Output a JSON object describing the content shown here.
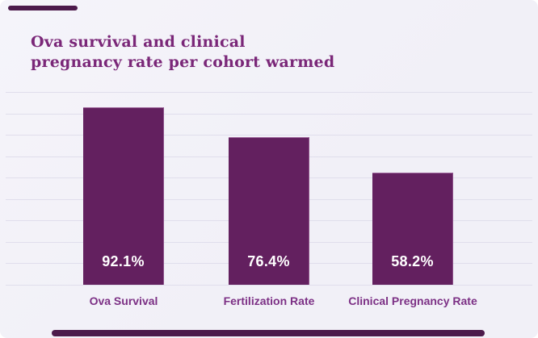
{
  "chart_data": {
    "type": "bar",
    "title": "Ova survival and clinical pregnancy rate per cohort warmed",
    "title_lines": [
      "Ova survival and clinical",
      "pregnancy rate per cohort warmed"
    ],
    "categories": [
      "Ova Survival",
      "Fertilization Rate",
      "Clinical Pregnancy Rate"
    ],
    "values": [
      92.1,
      76.4,
      58.2
    ],
    "value_labels": [
      "92.1%",
      "76.4%",
      "58.2%"
    ],
    "ylabel": "",
    "xlabel": "",
    "ylim": [
      0,
      100
    ],
    "grid": true,
    "gridline_count": 10,
    "legend": false
  },
  "colors": {
    "page_bg": "#ffffff",
    "card_bg": "#f2f1f7",
    "gridline": "#e0deec",
    "bar": "#63205f",
    "title": "#7a2778",
    "category_label": "#7c3085",
    "value_label": "#ffffff",
    "accent_strip": "#4c1a4b"
  }
}
